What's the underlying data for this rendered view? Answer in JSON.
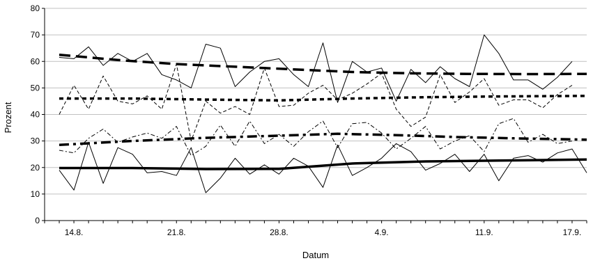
{
  "chart_data": {
    "type": "line",
    "title": "",
    "xlabel": "Datum",
    "ylabel": "Prozent",
    "ylim": [
      0,
      80
    ],
    "yticks": [
      0,
      10,
      20,
      30,
      40,
      50,
      60,
      70,
      80
    ],
    "xlim": [
      "2024-08-12",
      "2024-09-18"
    ],
    "xticks": [
      {
        "date": "2024-08-14",
        "label": "14.8."
      },
      {
        "date": "2024-08-21",
        "label": "21.8."
      },
      {
        "date": "2024-08-28",
        "label": "28.8."
      },
      {
        "date": "2024-09-04",
        "label": "4.9."
      },
      {
        "date": "2024-09-11",
        "label": "11.9."
      },
      {
        "date": "2024-09-17",
        "label": "17.9."
      }
    ],
    "grid": {
      "horizontal": true,
      "vertical": false
    },
    "legend": "none",
    "series": [
      {
        "style": "solid-thin-upper",
        "points": [
          [
            "2024-08-13",
            61.5
          ],
          [
            "2024-08-14",
            61
          ],
          [
            "2024-08-15",
            65.5
          ],
          [
            "2024-08-16",
            58.5
          ],
          [
            "2024-08-17",
            63
          ],
          [
            "2024-08-18",
            60
          ],
          [
            "2024-08-19",
            63
          ],
          [
            "2024-08-20",
            55
          ],
          [
            "2024-08-21",
            53
          ],
          [
            "2024-08-22",
            50
          ],
          [
            "2024-08-23",
            66.5
          ],
          [
            "2024-08-24",
            65
          ],
          [
            "2024-08-25",
            50.5
          ],
          [
            "2024-08-26",
            56
          ],
          [
            "2024-08-27",
            60
          ],
          [
            "2024-08-28",
            61
          ],
          [
            "2024-08-29",
            55
          ],
          [
            "2024-08-30",
            50.5
          ],
          [
            "2024-08-31",
            67
          ],
          [
            "2024-09-01",
            44.5
          ],
          [
            "2024-09-02",
            60
          ],
          [
            "2024-09-03",
            56
          ],
          [
            "2024-09-04",
            57.5
          ],
          [
            "2024-09-05",
            45
          ],
          [
            "2024-09-06",
            57
          ],
          [
            "2024-09-07",
            52
          ],
          [
            "2024-09-08",
            58
          ],
          [
            "2024-09-09",
            53.5
          ],
          [
            "2024-09-10",
            50.5
          ],
          [
            "2024-09-11",
            70
          ],
          [
            "2024-09-12",
            63
          ],
          [
            "2024-09-13",
            53
          ],
          [
            "2024-09-14",
            53
          ],
          [
            "2024-09-15",
            49.5
          ],
          [
            "2024-09-16",
            54
          ],
          [
            "2024-09-17",
            60
          ]
        ]
      },
      {
        "style": "dashed-thin",
        "points": [
          [
            "2024-08-13",
            40
          ],
          [
            "2024-08-14",
            51
          ],
          [
            "2024-08-15",
            42
          ],
          [
            "2024-08-16",
            54.5
          ],
          [
            "2024-08-17",
            45
          ],
          [
            "2024-08-18",
            44
          ],
          [
            "2024-08-19",
            47
          ],
          [
            "2024-08-20",
            42
          ],
          [
            "2024-08-21",
            59
          ],
          [
            "2024-08-22",
            30
          ],
          [
            "2024-08-23",
            45
          ],
          [
            "2024-08-24",
            40.5
          ],
          [
            "2024-08-25",
            43
          ],
          [
            "2024-08-26",
            40
          ],
          [
            "2024-08-27",
            57.5
          ],
          [
            "2024-08-28",
            43
          ],
          [
            "2024-08-29",
            43.5
          ],
          [
            "2024-08-30",
            48
          ],
          [
            "2024-08-31",
            51
          ],
          [
            "2024-09-01",
            45.5
          ],
          [
            "2024-09-02",
            48
          ],
          [
            "2024-09-03",
            51.5
          ],
          [
            "2024-09-04",
            55.5
          ],
          [
            "2024-09-05",
            42
          ],
          [
            "2024-09-06",
            35.5
          ],
          [
            "2024-09-07",
            39
          ],
          [
            "2024-09-08",
            55
          ],
          [
            "2024-09-09",
            44.5
          ],
          [
            "2024-09-10",
            48.5
          ],
          [
            "2024-09-11",
            53.5
          ],
          [
            "2024-09-12",
            43.5
          ],
          [
            "2024-09-13",
            45.5
          ],
          [
            "2024-09-14",
            45.5
          ],
          [
            "2024-09-15",
            42.5
          ],
          [
            "2024-09-16",
            47.5
          ],
          [
            "2024-09-17",
            51
          ]
        ]
      },
      {
        "style": "dashdot-thin",
        "points": [
          [
            "2024-08-13",
            26.5
          ],
          [
            "2024-08-14",
            25.5
          ],
          [
            "2024-08-15",
            31
          ],
          [
            "2024-08-16",
            34.5
          ],
          [
            "2024-08-17",
            29.5
          ],
          [
            "2024-08-18",
            31.5
          ],
          [
            "2024-08-19",
            33
          ],
          [
            "2024-08-20",
            31
          ],
          [
            "2024-08-21",
            35.5
          ],
          [
            "2024-08-22",
            24.5
          ],
          [
            "2024-08-23",
            28
          ],
          [
            "2024-08-24",
            36
          ],
          [
            "2024-08-25",
            28
          ],
          [
            "2024-08-26",
            37.5
          ],
          [
            "2024-08-27",
            29
          ],
          [
            "2024-08-28",
            32.5
          ],
          [
            "2024-08-29",
            28
          ],
          [
            "2024-08-30",
            33.5
          ],
          [
            "2024-08-31",
            37.5
          ],
          [
            "2024-09-01",
            27.5
          ],
          [
            "2024-09-02",
            36.5
          ],
          [
            "2024-09-03",
            37
          ],
          [
            "2024-09-04",
            33
          ],
          [
            "2024-09-05",
            27
          ],
          [
            "2024-09-06",
            31
          ],
          [
            "2024-09-07",
            35.5
          ],
          [
            "2024-09-08",
            27
          ],
          [
            "2024-09-09",
            30
          ],
          [
            "2024-09-10",
            32
          ],
          [
            "2024-09-11",
            26
          ],
          [
            "2024-09-12",
            36.5
          ],
          [
            "2024-09-13",
            38.5
          ],
          [
            "2024-09-14",
            29.5
          ],
          [
            "2024-09-15",
            32.5
          ],
          [
            "2024-09-16",
            29
          ],
          [
            "2024-09-17",
            30
          ]
        ]
      },
      {
        "style": "solid-thin-lower",
        "points": [
          [
            "2024-08-13",
            19
          ],
          [
            "2024-08-14",
            11.5
          ],
          [
            "2024-08-15",
            29.5
          ],
          [
            "2024-08-16",
            14
          ],
          [
            "2024-08-17",
            27.5
          ],
          [
            "2024-08-18",
            25
          ],
          [
            "2024-08-19",
            18
          ],
          [
            "2024-08-20",
            18.5
          ],
          [
            "2024-08-21",
            17
          ],
          [
            "2024-08-22",
            27.5
          ],
          [
            "2024-08-23",
            10.5
          ],
          [
            "2024-08-24",
            16
          ],
          [
            "2024-08-25",
            23.5
          ],
          [
            "2024-08-26",
            17.5
          ],
          [
            "2024-08-27",
            21
          ],
          [
            "2024-08-28",
            17.5
          ],
          [
            "2024-08-29",
            23.5
          ],
          [
            "2024-08-30",
            20.5
          ],
          [
            "2024-08-31",
            12.5
          ],
          [
            "2024-09-01",
            28.5
          ],
          [
            "2024-09-02",
            17
          ],
          [
            "2024-09-03",
            20
          ],
          [
            "2024-09-04",
            23.5
          ],
          [
            "2024-09-05",
            29
          ],
          [
            "2024-09-06",
            26
          ],
          [
            "2024-09-07",
            19
          ],
          [
            "2024-09-08",
            21.5
          ],
          [
            "2024-09-09",
            25
          ],
          [
            "2024-09-10",
            18.5
          ],
          [
            "2024-09-11",
            25
          ],
          [
            "2024-09-12",
            15
          ],
          [
            "2024-09-13",
            23.5
          ],
          [
            "2024-09-14",
            24.5
          ],
          [
            "2024-09-15",
            22
          ],
          [
            "2024-09-16",
            25.5
          ],
          [
            "2024-09-17",
            27
          ],
          [
            "2024-09-18",
            18
          ]
        ]
      },
      {
        "style": "dashed-thick-trend",
        "points": [
          [
            "2024-08-13",
            62.5
          ],
          [
            "2024-08-17",
            60.5
          ],
          [
            "2024-08-21",
            59
          ],
          [
            "2024-08-25",
            58
          ],
          [
            "2024-08-29",
            57
          ],
          [
            "2024-09-02",
            56
          ],
          [
            "2024-09-06",
            55.5
          ],
          [
            "2024-09-10",
            55.3
          ],
          [
            "2024-09-14",
            55.2
          ],
          [
            "2024-09-18",
            55.3
          ]
        ]
      },
      {
        "style": "dotted-thick-trend",
        "points": [
          [
            "2024-08-13",
            46
          ],
          [
            "2024-08-18",
            46
          ],
          [
            "2024-08-23",
            45.6
          ],
          [
            "2024-08-28",
            45.3
          ],
          [
            "2024-09-02",
            46
          ],
          [
            "2024-09-07",
            46.5
          ],
          [
            "2024-09-12",
            46.8
          ],
          [
            "2024-09-18",
            47
          ]
        ]
      },
      {
        "style": "dashdot-thick-trend",
        "points": [
          [
            "2024-08-13",
            28.5
          ],
          [
            "2024-08-18",
            30
          ],
          [
            "2024-08-23",
            31.2
          ],
          [
            "2024-08-28",
            32
          ],
          [
            "2024-09-01",
            32.7
          ],
          [
            "2024-09-05",
            32.2
          ],
          [
            "2024-09-09",
            31.5
          ],
          [
            "2024-09-13",
            31
          ],
          [
            "2024-09-18",
            30.5
          ]
        ]
      },
      {
        "style": "solid-thick-trend",
        "points": [
          [
            "2024-08-13",
            19.8
          ],
          [
            "2024-08-18",
            19.8
          ],
          [
            "2024-08-23",
            19.4
          ],
          [
            "2024-08-28",
            19.5
          ],
          [
            "2024-09-02",
            21.5
          ],
          [
            "2024-09-07",
            22.3
          ],
          [
            "2024-09-12",
            22.6
          ],
          [
            "2024-09-18",
            23
          ]
        ]
      }
    ]
  },
  "styles": {
    "solid-thin-upper": {
      "width": 1,
      "dash": "",
      "color": "#000000"
    },
    "solid-thin-lower": {
      "width": 1,
      "dash": "",
      "color": "#000000"
    },
    "dashed-thin": {
      "width": 1,
      "dash": "5,3",
      "color": "#000000"
    },
    "dashdot-thin": {
      "width": 1,
      "dash": "6,3,2,3",
      "color": "#000000"
    },
    "dashed-thick-trend": {
      "width": 3.5,
      "dash": "16,8",
      "color": "#000000"
    },
    "dotted-thick-trend": {
      "width": 3.5,
      "dash": "6,5",
      "color": "#000000"
    },
    "dashdot-thick-trend": {
      "width": 3.5,
      "dash": "14,6,4,6",
      "color": "#000000"
    },
    "solid-thick-trend": {
      "width": 3.5,
      "dash": "",
      "color": "#000000"
    }
  },
  "colors": {
    "grid": "#c0c0c0",
    "axis": "#000000",
    "background": "#ffffff"
  }
}
